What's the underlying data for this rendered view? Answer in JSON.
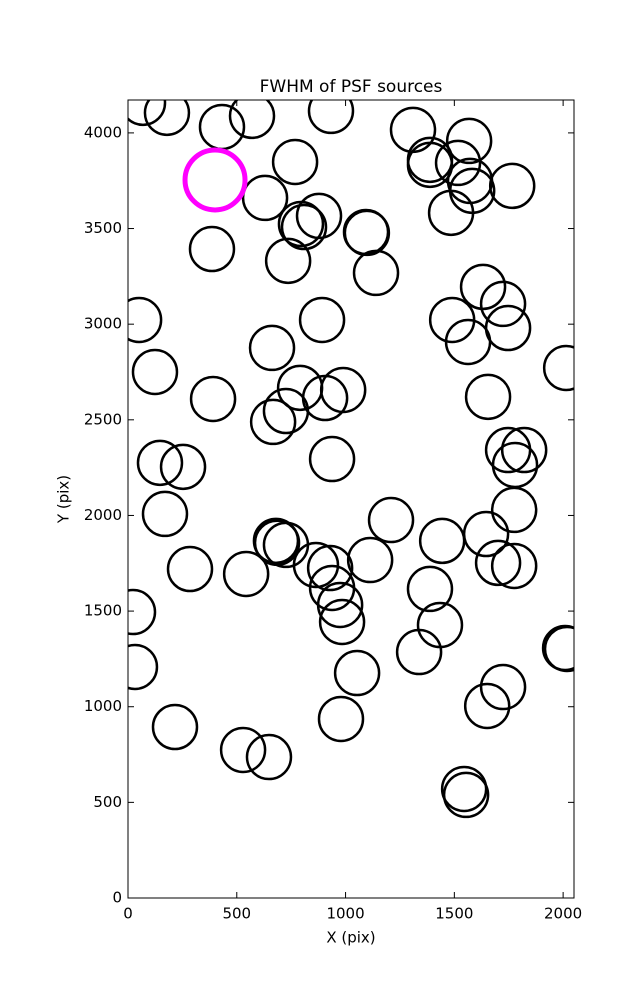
{
  "chart_data": {
    "type": "scatter",
    "title": "FWHM of PSF sources",
    "x_label": "X (pix)",
    "y_label": "Y (pix)",
    "xlim": [
      0,
      2050
    ],
    "ylim": [
      0,
      4172
    ],
    "xticks": [
      0,
      500,
      1000,
      1500,
      2000
    ],
    "yticks": [
      0,
      500,
      1000,
      1500,
      2000,
      2500,
      3000,
      3500,
      4000
    ],
    "series": [
      {
        "color": "#000000",
        "x": [
          69,
          179,
          432,
          570,
          933,
          1310,
          1388,
          1388,
          1568,
          1517,
          1572,
          1582,
          1766,
          768,
          630,
          795,
          878,
          809,
          1094,
          1098,
          1485,
          386,
          736,
          1140,
          1632,
          1724,
          51,
          892,
          1490,
          1747,
          1563,
          662,
          124,
          2014,
          391,
          791,
          906,
          989,
          1655,
          726,
          667,
          938,
          1747,
          1821,
          1779,
          147,
          253,
          170,
          1209,
          1775,
          1444,
          1646,
          680,
          685,
          726,
          864,
          929,
          1113,
          1701,
          1775,
          285,
          543,
          938,
          1388,
          975,
          984,
          1434,
          23,
          2009,
          2018,
          1338,
          32,
          1053,
          1724,
          1651,
          979,
          216,
          529,
          648,
          1545,
          1554
        ],
        "values": [
          4157,
          4105,
          4031,
          4089,
          4115,
          4016,
          3859,
          3833,
          3958,
          3843,
          3749,
          3697,
          3723,
          3848,
          3660,
          3524,
          3566,
          3508,
          3482,
          3477,
          3582,
          3393,
          3331,
          3268,
          3195,
          3106,
          3022,
          3022,
          3022,
          2980,
          2907,
          2876,
          2750,
          2771,
          2609,
          2667,
          2614,
          2656,
          2620,
          2546,
          2489,
          2295,
          2342,
          2342,
          2264,
          2275,
          2254,
          2008,
          1976,
          2029,
          1867,
          1903,
          1867,
          1857,
          1846,
          1741,
          1725,
          1767,
          1752,
          1736,
          1720,
          1694,
          1621,
          1616,
          1532,
          1443,
          1427,
          1495,
          1307,
          1302,
          1286,
          1208,
          1176,
          1103,
          1004,
          936,
          894,
          774,
          737,
          570,
          539
        ]
      },
      {
        "color": "#ff00ff",
        "x": [
          400
        ],
        "values": [
          3754
        ]
      }
    ]
  }
}
